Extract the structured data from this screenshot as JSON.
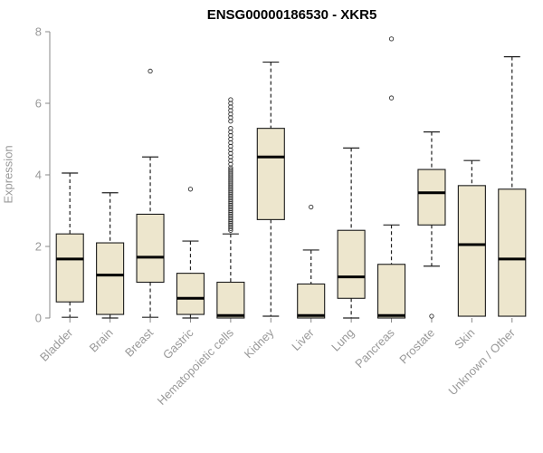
{
  "chart_data": {
    "type": "boxplot",
    "title": "ENSG00000186530 - XKR5",
    "ylabel": "Expression",
    "ylim": [
      0,
      8
    ],
    "yticks": [
      0,
      2,
      4,
      6,
      8
    ],
    "categories": [
      "Bladder",
      "Brain",
      "Breast",
      "Gastric",
      "Hematopoietic cells",
      "Kidney",
      "Liver",
      "Lung",
      "Pancreas",
      "Prostate",
      "Skin",
      "Unknown / Other"
    ],
    "boxes": [
      {
        "category": "Bladder",
        "low": 0.02,
        "q1": 0.45,
        "median": 1.65,
        "q3": 2.35,
        "high": 4.05,
        "outliers": []
      },
      {
        "category": "Brain",
        "low": 0.0,
        "q1": 0.1,
        "median": 1.2,
        "q3": 2.1,
        "high": 3.5,
        "outliers": []
      },
      {
        "category": "Breast",
        "low": 0.02,
        "q1": 1.0,
        "median": 1.7,
        "q3": 2.9,
        "high": 4.5,
        "outliers": [
          6.9
        ]
      },
      {
        "category": "Gastric",
        "low": 0.0,
        "q1": 0.1,
        "median": 0.55,
        "q3": 1.25,
        "high": 2.15,
        "outliers": [
          3.6
        ]
      },
      {
        "category": "Hematopoietic cells",
        "low": 0.0,
        "q1": 0.0,
        "median": 0.07,
        "q3": 1.0,
        "high": 2.35,
        "outliers": [
          2.45,
          2.5,
          2.55,
          2.6,
          2.65,
          2.7,
          2.75,
          2.8,
          2.85,
          2.9,
          2.95,
          3.0,
          3.05,
          3.1,
          3.15,
          3.2,
          3.25,
          3.3,
          3.35,
          3.4,
          3.45,
          3.5,
          3.55,
          3.6,
          3.65,
          3.7,
          3.75,
          3.8,
          3.85,
          3.9,
          3.95,
          4.0,
          4.05,
          4.1,
          4.15,
          4.2,
          4.3,
          4.4,
          4.5,
          4.6,
          4.7,
          4.8,
          4.9,
          5.0,
          5.1,
          5.2,
          5.3,
          5.5,
          5.6,
          5.7,
          5.8,
          5.9,
          6.0,
          6.1
        ]
      },
      {
        "category": "Kidney",
        "low": 0.05,
        "q1": 2.75,
        "median": 4.5,
        "q3": 5.3,
        "high": 7.15,
        "outliers": []
      },
      {
        "category": "Liver",
        "low": 0.0,
        "q1": 0.0,
        "median": 0.07,
        "q3": 0.95,
        "high": 1.9,
        "outliers": [
          3.1
        ]
      },
      {
        "category": "Lung",
        "low": 0.0,
        "q1": 0.55,
        "median": 1.15,
        "q3": 2.45,
        "high": 4.75,
        "outliers": []
      },
      {
        "category": "Pancreas",
        "low": 0.0,
        "q1": 0.0,
        "median": 0.07,
        "q3": 1.5,
        "high": 2.6,
        "outliers": [
          6.15,
          7.8
        ]
      },
      {
        "category": "Prostate",
        "low": 1.45,
        "q1": 2.6,
        "median": 3.5,
        "q3": 4.15,
        "high": 5.2,
        "outliers": [
          0.05
        ]
      },
      {
        "category": "Skin",
        "low": 0.05,
        "q1": 0.05,
        "median": 2.05,
        "q3": 3.7,
        "high": 4.4,
        "outliers": []
      },
      {
        "category": "Unknown / Other",
        "low": 0.05,
        "q1": 0.05,
        "median": 1.65,
        "q3": 3.6,
        "high": 7.3,
        "outliers": []
      }
    ],
    "style": {
      "box_fill": "#EDE6CD",
      "box_stroke": "#1a1a1a",
      "median_color": "#000000",
      "whisker_color": "#222222",
      "outlier_color": "#333333",
      "axis_color": "#888888",
      "label_color": "#999999",
      "title_color": "#000000"
    }
  }
}
